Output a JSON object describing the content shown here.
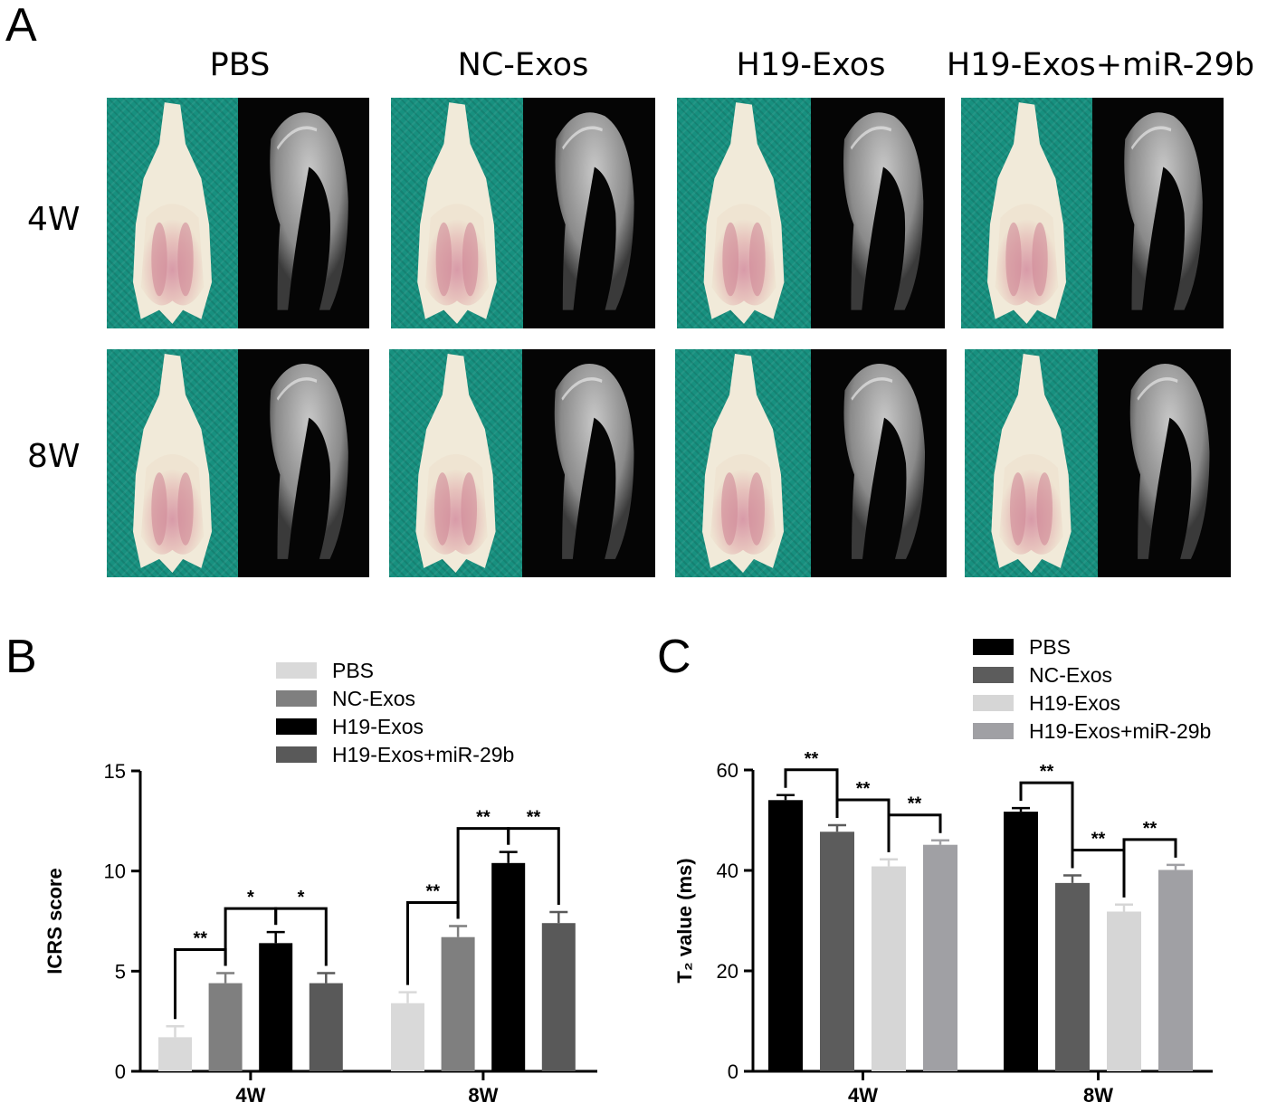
{
  "panel_letters": {
    "a": "A",
    "b": "B",
    "c": "C"
  },
  "panel_a": {
    "column_headers": [
      "PBS",
      "NC-Exos",
      "H19-Exos",
      "H19-Exos+miR-29b"
    ],
    "row_labels": [
      "4W",
      "8W"
    ],
    "cloth_color": "#17907f"
  },
  "chart_data": [
    {
      "type": "bar",
      "panel": "B",
      "categories": [
        "4W",
        "8W"
      ],
      "ylabel": "ICRS score",
      "xlabel": "",
      "ylim": [
        0,
        15
      ],
      "yticks": [
        "0",
        "5",
        "10",
        "15"
      ],
      "legend_position": "top-right",
      "series": [
        {
          "name": "PBS",
          "color": "#d9d9d9",
          "values": [
            1.7,
            3.4
          ],
          "errors": [
            0.55,
            0.55
          ]
        },
        {
          "name": "NC-Exos",
          "color": "#7f7f7f",
          "values": [
            4.4,
            6.7
          ],
          "errors": [
            0.5,
            0.55
          ]
        },
        {
          "name": "H19-Exos",
          "color": "#000000",
          "values": [
            6.4,
            10.4
          ],
          "errors": [
            0.55,
            0.55
          ]
        },
        {
          "name": "H19-Exos+miR-29b",
          "color": "#595959",
          "values": [
            4.4,
            7.4
          ],
          "errors": [
            0.5,
            0.55
          ]
        }
      ],
      "significance": [
        {
          "group": 0,
          "from": 0,
          "to": 1,
          "label": "**"
        },
        {
          "group": 0,
          "from": 1,
          "to": 2,
          "label": "*"
        },
        {
          "group": 0,
          "from": 2,
          "to": 3,
          "label": "*"
        },
        {
          "group": 1,
          "from": 0,
          "to": 1,
          "label": "**"
        },
        {
          "group": 1,
          "from": 1,
          "to": 2,
          "label": "**"
        },
        {
          "group": 1,
          "from": 2,
          "to": 3,
          "label": "**"
        }
      ]
    },
    {
      "type": "bar",
      "panel": "C",
      "categories": [
        "4W",
        "8W"
      ],
      "ylabel": "T₂ value (ms)",
      "xlabel": "",
      "ylim": [
        0,
        60
      ],
      "yticks": [
        "0",
        "20",
        "40",
        "60"
      ],
      "legend_position": "top-right",
      "series": [
        {
          "name": "PBS",
          "color": "#000000",
          "values": [
            54,
            51.7
          ],
          "errors": [
            1.0,
            0.7
          ]
        },
        {
          "name": "NC-Exos",
          "color": "#5c5c5c",
          "values": [
            47.7,
            37.5
          ],
          "errors": [
            1.3,
            1.5
          ]
        },
        {
          "name": "H19-Exos",
          "color": "#d6d6d6",
          "values": [
            40.8,
            31.8
          ],
          "errors": [
            1.4,
            1.4
          ]
        },
        {
          "name": "H19-Exos+miR-29b",
          "color": "#a0a0a4",
          "values": [
            45.1,
            40.1
          ],
          "errors": [
            0.9,
            1.0
          ]
        }
      ],
      "significance": [
        {
          "group": 0,
          "from": 0,
          "to": 1,
          "label": "**"
        },
        {
          "group": 0,
          "from": 1,
          "to": 2,
          "label": "**"
        },
        {
          "group": 0,
          "from": 2,
          "to": 3,
          "label": "**"
        },
        {
          "group": 1,
          "from": 0,
          "to": 1,
          "label": "**"
        },
        {
          "group": 1,
          "from": 1,
          "to": 2,
          "label": "**"
        },
        {
          "group": 1,
          "from": 2,
          "to": 3,
          "label": "**"
        }
      ]
    }
  ]
}
